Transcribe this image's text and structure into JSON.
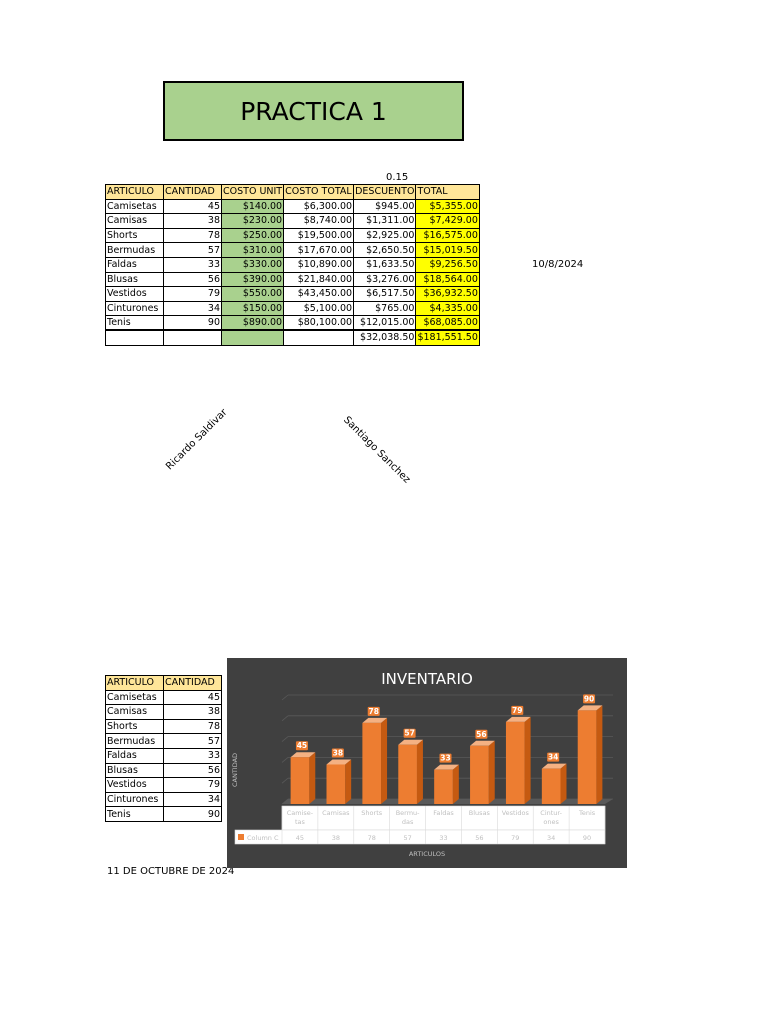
{
  "title": "PRACTICA 1",
  "discount_rate": "0.15",
  "date_right": "10/8/2024",
  "date_bottom": "11 DE OCTUBRE DE 2024",
  "signatures": [
    "Ricardo Saldivar",
    "Santiago Sanchez"
  ],
  "main_table": {
    "headers": [
      "ARTICULO",
      "CANTIDAD",
      "COSTO UNIT",
      "COSTO TOTAL",
      "DESCUENTO",
      "TOTAL"
    ],
    "rows": [
      [
        "Camisetas",
        "45",
        "$140.00",
        "$6,300.00",
        "$945.00",
        "$5,355.00"
      ],
      [
        "Camisas",
        "38",
        "$230.00",
        "$8,740.00",
        "$1,311.00",
        "$7,429.00"
      ],
      [
        "Shorts",
        "78",
        "$250.00",
        "$19,500.00",
        "$2,925.00",
        "$16,575.00"
      ],
      [
        "Bermudas",
        "57",
        "$310.00",
        "$17,670.00",
        "$2,650.50",
        "$15,019.50"
      ],
      [
        "Faldas",
        "33",
        "$330.00",
        "$10,890.00",
        "$1,633.50",
        "$9,256.50"
      ],
      [
        "Blusas",
        "56",
        "$390.00",
        "$21,840.00",
        "$3,276.00",
        "$18,564.00"
      ],
      [
        "Vestidos",
        "79",
        "$550.00",
        "$43,450.00",
        "$6,517.50",
        "$36,932.50"
      ],
      [
        "Cinturones",
        "34",
        "$150.00",
        "$5,100.00",
        "$765.00",
        "$4,335.00"
      ],
      [
        "Tenis",
        "90",
        "$890.00",
        "$80,100.00",
        "$12,015.00",
        "$68,085.00"
      ]
    ],
    "totals": [
      "",
      "",
      "",
      "",
      "$32,038.50",
      "$181,551.50"
    ]
  },
  "small_table": {
    "headers": [
      "ARTICULO",
      "CANTIDAD"
    ],
    "rows": [
      [
        "Camisetas",
        "45"
      ],
      [
        "Camisas",
        "38"
      ],
      [
        "Shorts",
        "78"
      ],
      [
        "Bermudas",
        "57"
      ],
      [
        "Faldas",
        "33"
      ],
      [
        "Blusas",
        "56"
      ],
      [
        "Vestidos",
        "79"
      ],
      [
        "Cinturones",
        "34"
      ],
      [
        "Tenis",
        "90"
      ]
    ]
  },
  "chart_data": {
    "type": "bar",
    "title": "INVENTARIO",
    "xlabel": "ARTICULOS",
    "ylabel": "CANTIDAD",
    "categories": [
      "Camise-tas",
      "Camisas",
      "Shorts",
      "Bermu-das",
      "Faldas",
      "Blusas",
      "Vestidos",
      "Cintur-ones",
      "Tenis"
    ],
    "series": [
      {
        "name": "Column C",
        "values": [
          45,
          38,
          78,
          57,
          33,
          56,
          79,
          34,
          90
        ]
      }
    ],
    "ylim": [
      0,
      100
    ],
    "legend": "data-table",
    "colors": {
      "bar": "#ed7d31",
      "bar_side": "#c55a11",
      "bar_top": "#f4b183",
      "background": "#404040"
    }
  }
}
